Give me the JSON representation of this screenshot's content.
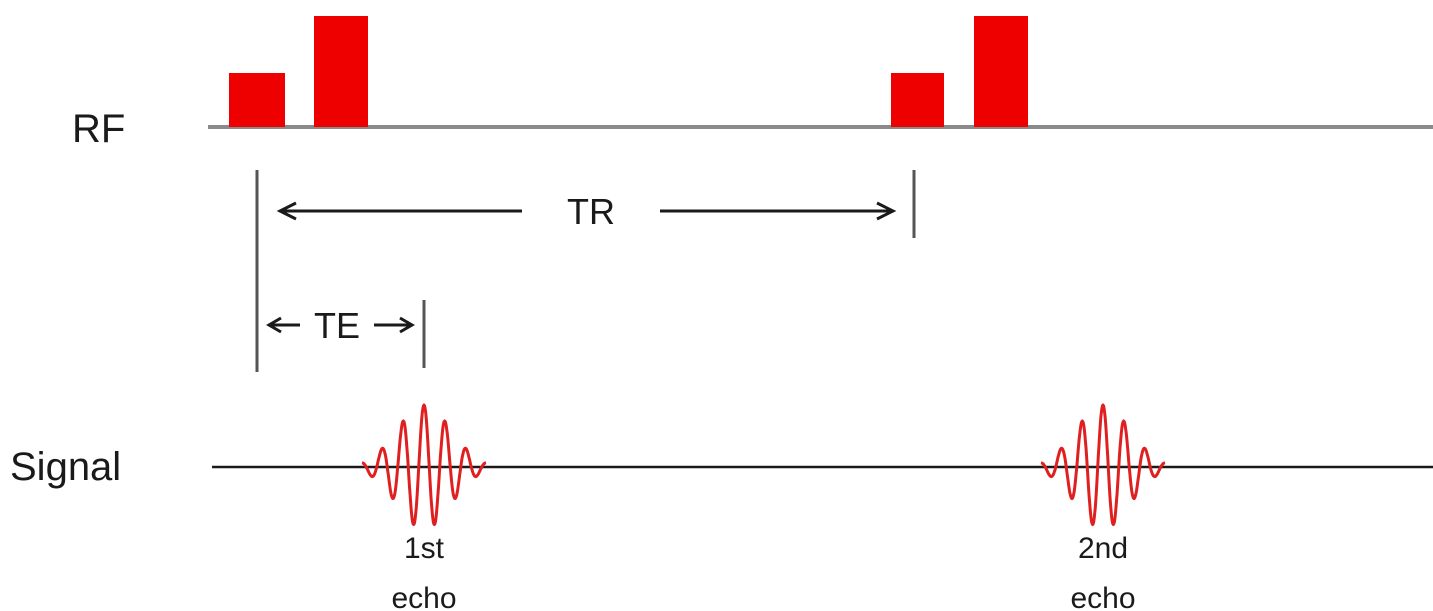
{
  "labels": {
    "rf": "RF",
    "signal": "Signal",
    "tr": "TR",
    "te": "TE"
  },
  "echoes": [
    {
      "ordinal": "1st",
      "word": "echo"
    },
    {
      "ordinal": "2nd",
      "word": "echo"
    }
  ],
  "colors": {
    "pulse": "#ee0000",
    "echo": "#e02020",
    "baseline": "#8a8a8a",
    "text": "#1a1a1a"
  }
}
